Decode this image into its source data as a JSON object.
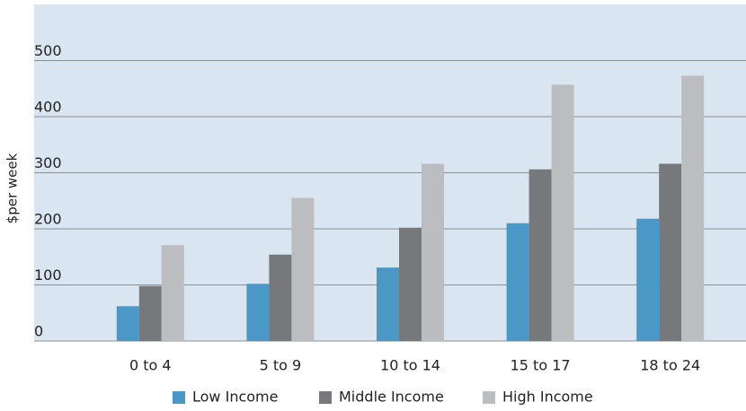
{
  "chart_data": {
    "type": "bar",
    "y_label": "$per week",
    "categories": [
      "0 to 4",
      "5 to 9",
      "10 to 14",
      "15 to 17",
      "18 to 24"
    ],
    "series": [
      {
        "name": "Low Income",
        "color": "#4a98c5",
        "values": [
          62,
          102,
          131,
          210,
          218
        ]
      },
      {
        "name": "Middle Income",
        "color": "#77787b",
        "values": [
          98,
          154,
          202,
          306,
          316
        ]
      },
      {
        "name": "High Income",
        "color": "#bcbdc0",
        "values": [
          171,
          255,
          316,
          457,
          473
        ]
      }
    ],
    "ylim": [
      0,
      600
    ],
    "yticks": [
      0,
      100,
      200,
      300,
      400,
      500
    ],
    "grid": true,
    "legend": "bottom"
  }
}
